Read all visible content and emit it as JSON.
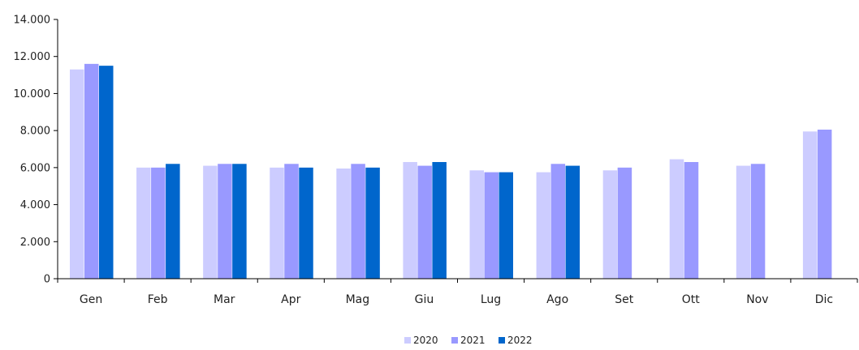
{
  "chart_data": {
    "type": "bar",
    "categories": [
      "Gen",
      "Feb",
      "Mar",
      "Apr",
      "Mag",
      "Giu",
      "Lug",
      "Ago",
      "Set",
      "Ott",
      "Nov",
      "Dic"
    ],
    "series": [
      {
        "name": "2020",
        "color": "#ccccff",
        "values": [
          11300,
          6000,
          6100,
          6000,
          5950,
          6300,
          5850,
          5750,
          5850,
          6450,
          6100,
          7950
        ]
      },
      {
        "name": "2021",
        "color": "#9999ff",
        "values": [
          11600,
          6000,
          6200,
          6200,
          6200,
          6100,
          5750,
          6200,
          6000,
          6300,
          6200,
          8050
        ]
      },
      {
        "name": "2022",
        "color": "#0066cc",
        "values": [
          11500,
          6200,
          6200,
          6000,
          6000,
          6300,
          5750,
          6100,
          null,
          null,
          null,
          null
        ]
      }
    ],
    "yticks": [
      "0",
      "2.000",
      "4.000",
      "6.000",
      "8.000",
      "10.000",
      "12.000",
      "14.000"
    ],
    "ylim": [
      0,
      14000
    ],
    "legend_position": "bottom",
    "grid": false
  }
}
